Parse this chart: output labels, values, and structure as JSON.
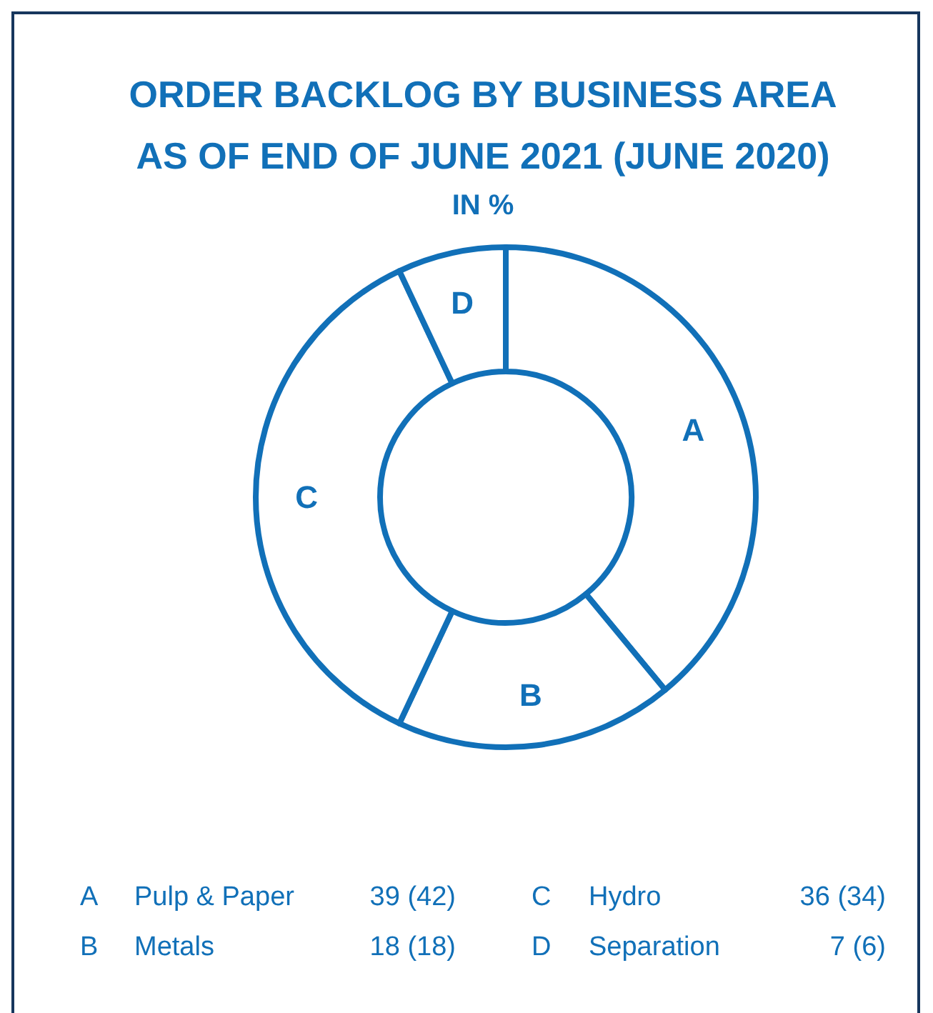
{
  "chart_data": {
    "type": "donut",
    "title": "ORDER BACKLOG BY BUSINESS AREA\nAS OF END OF JUNE 2021 (JUNE 2020)",
    "subtitle": "IN %",
    "categories": [
      "A",
      "B",
      "C",
      "D"
    ],
    "values": [
      39,
      18,
      36,
      7
    ],
    "colors": [
      "#ffffff",
      "#ffffff",
      "#ffffff",
      "#ffffff"
    ],
    "color": "#1170b8",
    "annotations": [
      "Pulp & Paper",
      "39 (42)",
      "Metals",
      "18 (18)",
      "Hydro",
      "36 (34)",
      "Separation",
      "7 (6)"
    ]
  }
}
